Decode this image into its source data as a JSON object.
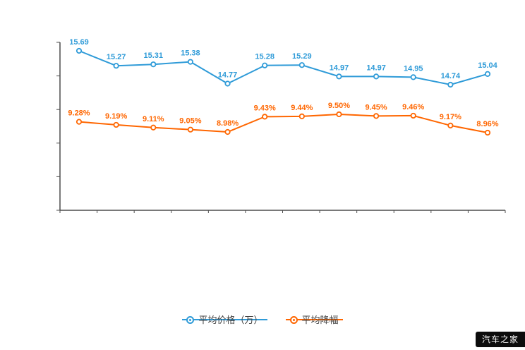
{
  "chart_data": {
    "type": "line",
    "title": "",
    "xlabel": "",
    "ylabel": "",
    "grid": false,
    "legend_position": "bottom",
    "categories": [
      "",
      "",
      "",
      "",
      "",
      "",
      "",
      "",
      "",
      "",
      "",
      ""
    ],
    "series": [
      {
        "name": "平均价格（万）",
        "color": "#2f9bd8",
        "values": [
          15.69,
          15.27,
          15.31,
          15.38,
          14.77,
          15.28,
          15.29,
          14.97,
          14.97,
          14.95,
          14.74,
          15.04
        ],
        "labels": [
          "15.69",
          "15.27",
          "15.31",
          "15.38",
          "14.77",
          "15.28",
          "15.29",
          "14.97",
          "14.97",
          "14.95",
          "14.74",
          "15.04"
        ]
      },
      {
        "name": "平均降幅",
        "color": "#ff6600",
        "values": [
          9.28,
          9.19,
          9.11,
          9.05,
          8.98,
          9.43,
          9.44,
          9.5,
          9.45,
          9.46,
          9.17,
          8.96
        ],
        "labels": [
          "9.28%",
          "9.19%",
          "9.11%",
          "9.05%",
          "8.98%",
          "9.43%",
          "9.44%",
          "9.50%",
          "9.45%",
          "9.46%",
          "9.17%",
          "8.96%"
        ]
      }
    ]
  },
  "legend": {
    "items": [
      {
        "label": "平均价格（万）",
        "color": "#2f9bd8"
      },
      {
        "label": "平均降幅",
        "color": "#ff6600"
      }
    ]
  },
  "watermark": {
    "text": "汽车之家",
    "bg": "#0c0c0c",
    "fg": "#ffffff"
  },
  "axis": {
    "color": "#4d4d4d"
  }
}
